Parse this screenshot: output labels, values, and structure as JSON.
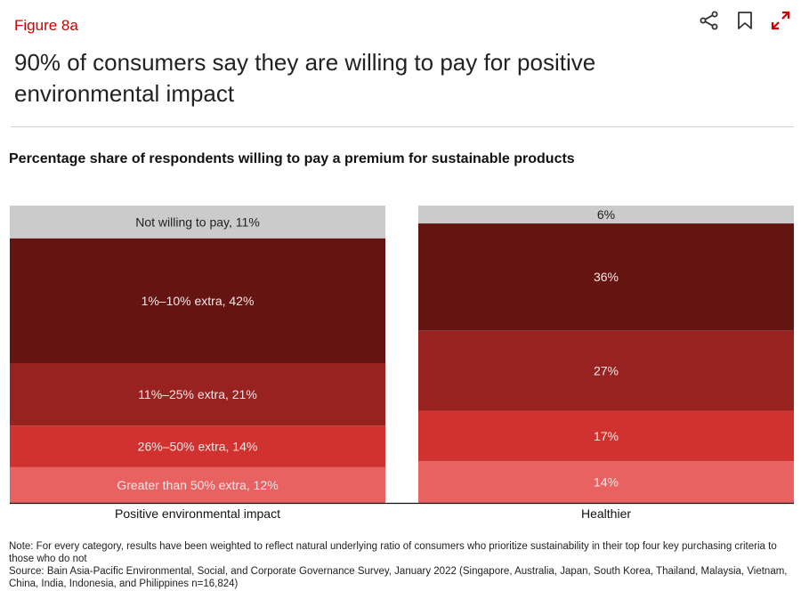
{
  "figure_label": "Figure 8a",
  "title": "90% of consumers say they are willing to pay for positive environmental impact",
  "toolbar": {
    "icons": [
      "share-icon",
      "bookmark-icon",
      "expand-icon"
    ]
  },
  "chart_data": {
    "type": "bar",
    "stacked": true,
    "normalized": true,
    "title": "Percentage share of respondents willing to pay a premium for sustainable products",
    "xlabel": "",
    "ylabel": "",
    "ylim": [
      0,
      100
    ],
    "grid": false,
    "legend": "none",
    "categories": [
      "Positive environmental impact",
      "Healthier"
    ],
    "series": [
      {
        "name": "Greater than 50% extra",
        "color": "#e86262",
        "values": [
          12,
          14
        ],
        "labels": [
          "Greater than 50% extra, 12%",
          "14%"
        ]
      },
      {
        "name": "26%–50% extra",
        "color": "#d0332f",
        "values": [
          14,
          17
        ],
        "labels": [
          "26%–50% extra, 14%",
          "17%"
        ]
      },
      {
        "name": "11%–25% extra",
        "color": "#982220",
        "values": [
          21,
          27
        ],
        "labels": [
          "11%–25% extra, 21%",
          "27%"
        ]
      },
      {
        "name": "1%–10% extra",
        "color": "#651511",
        "values": [
          42,
          36
        ],
        "labels": [
          "1%–10% extra, 42%",
          "36%"
        ]
      },
      {
        "name": "Not willing to pay",
        "color": "#cbcbcb",
        "values": [
          11,
          6
        ],
        "labels": [
          "Not willing to pay, 11%",
          "6%"
        ]
      }
    ]
  },
  "notes": {
    "note": "Note: For every category, results have been weighted to reflect natural underlying ratio of consumers who prioritize sustainability in their top four key purchasing criteria to those who do not",
    "source": "Source: Bain Asia-Pacific Environmental, Social, and Corporate Governance Survey, January 2022 (Singapore, Australia, Japan, South Korea, Thailand, Malaysia, Vietnam, China, India, Indonesia, and Philippines n=16,824)"
  }
}
